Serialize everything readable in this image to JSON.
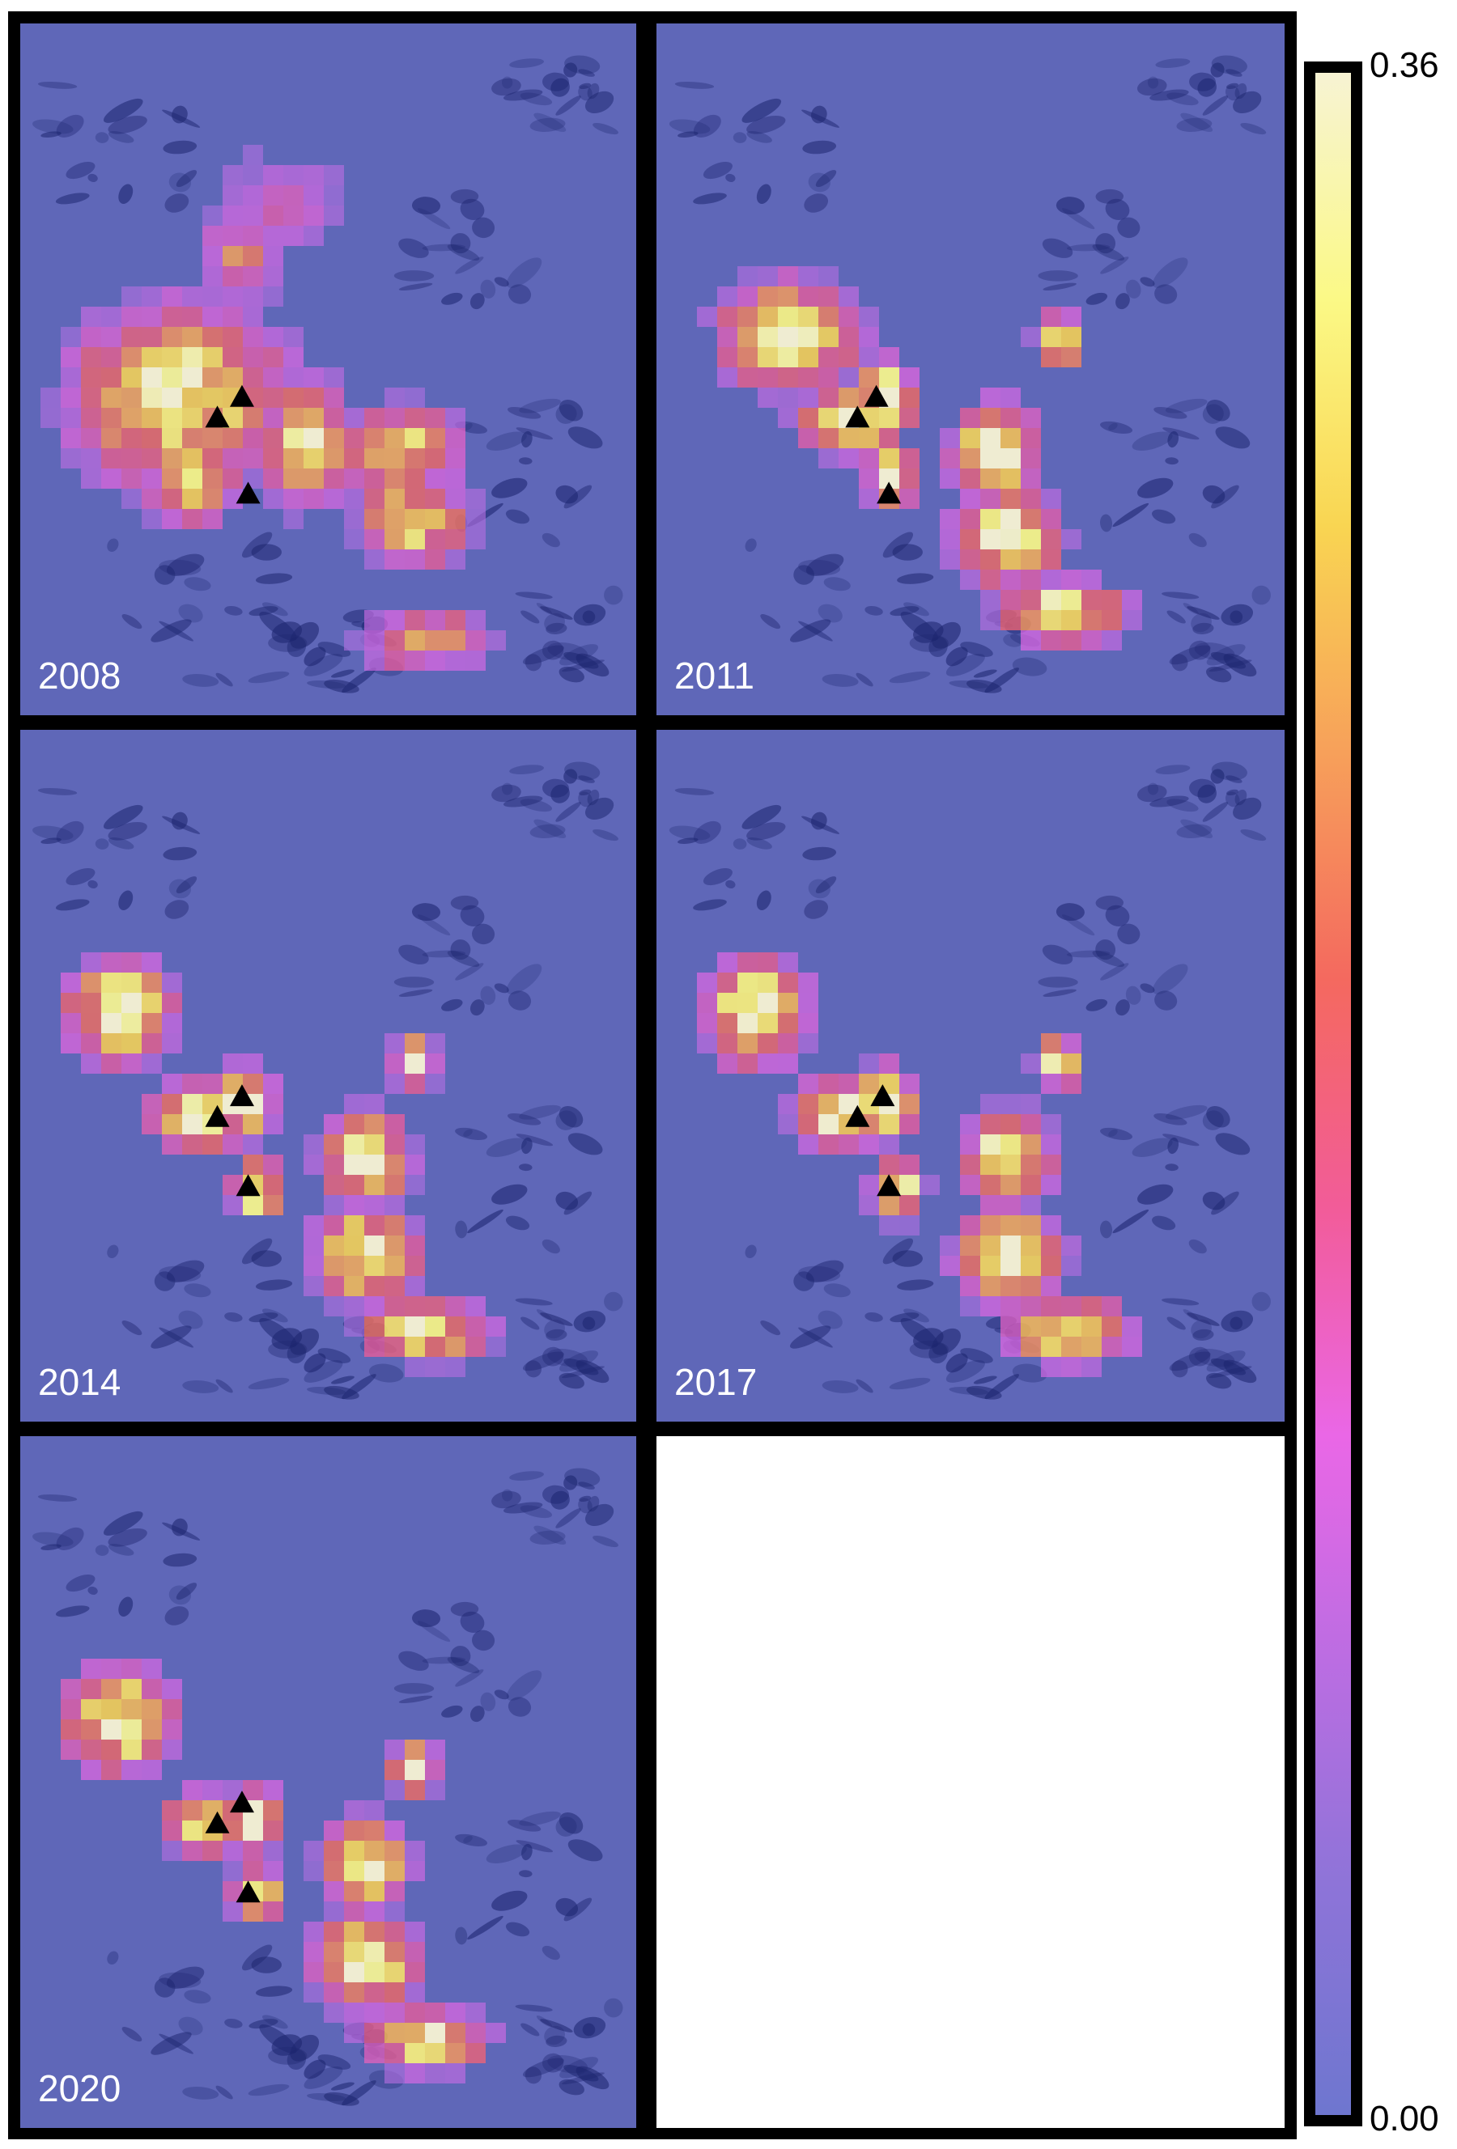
{
  "panels": [
    {
      "year": "2008",
      "hotspots": [
        [
          0.06,
          0.4,
          0.4,
          0.28,
          0.48
        ],
        [
          0.2,
          0.58,
          0.16,
          0.14,
          0.4
        ],
        [
          0.4,
          0.52,
          0.13,
          0.18,
          0.45
        ],
        [
          0.52,
          0.56,
          0.2,
          0.12,
          0.4
        ],
        [
          0.55,
          0.66,
          0.18,
          0.12,
          0.42
        ],
        [
          0.55,
          0.86,
          0.22,
          0.06,
          0.35
        ],
        [
          0.3,
          0.28,
          0.12,
          0.12,
          0.3
        ],
        [
          0.3,
          0.18,
          0.25,
          0.16,
          0.18
        ]
      ],
      "vents": [
        [
          0.36,
          0.54
        ],
        [
          0.32,
          0.57
        ],
        [
          0.37,
          0.68
        ]
      ]
    },
    {
      "year": "2011",
      "hotspots": [
        [
          0.1,
          0.38,
          0.22,
          0.14,
          0.52
        ],
        [
          0.23,
          0.54,
          0.15,
          0.07,
          0.5
        ],
        [
          0.33,
          0.5,
          0.07,
          0.08,
          0.5
        ],
        [
          0.35,
          0.63,
          0.05,
          0.05,
          0.5
        ],
        [
          0.48,
          0.56,
          0.12,
          0.12,
          0.52
        ],
        [
          0.48,
          0.68,
          0.16,
          0.12,
          0.5
        ],
        [
          0.55,
          0.82,
          0.2,
          0.06,
          0.48
        ],
        [
          0.62,
          0.44,
          0.04,
          0.04,
          0.45
        ]
      ],
      "vents": [
        [
          0.35,
          0.54
        ],
        [
          0.32,
          0.57
        ],
        [
          0.37,
          0.68
        ]
      ]
    },
    {
      "year": "2014",
      "hotspots": [
        [
          0.08,
          0.34,
          0.16,
          0.14,
          0.52
        ],
        [
          0.22,
          0.52,
          0.15,
          0.07,
          0.5
        ],
        [
          0.33,
          0.5,
          0.07,
          0.08,
          0.5
        ],
        [
          0.36,
          0.64,
          0.05,
          0.05,
          0.5
        ],
        [
          0.5,
          0.56,
          0.12,
          0.12,
          0.52
        ],
        [
          0.48,
          0.7,
          0.16,
          0.12,
          0.5
        ],
        [
          0.56,
          0.84,
          0.2,
          0.06,
          0.48
        ],
        [
          0.62,
          0.46,
          0.04,
          0.04,
          0.45
        ]
      ],
      "vents": [
        [
          0.36,
          0.53
        ],
        [
          0.32,
          0.56
        ],
        [
          0.37,
          0.66
        ]
      ]
    },
    {
      "year": "2017",
      "hotspots": [
        [
          0.08,
          0.34,
          0.16,
          0.14,
          0.52
        ],
        [
          0.22,
          0.52,
          0.15,
          0.07,
          0.5
        ],
        [
          0.33,
          0.5,
          0.07,
          0.08,
          0.5
        ],
        [
          0.36,
          0.64,
          0.05,
          0.05,
          0.5
        ],
        [
          0.5,
          0.56,
          0.12,
          0.12,
          0.52
        ],
        [
          0.48,
          0.7,
          0.16,
          0.12,
          0.5
        ],
        [
          0.56,
          0.84,
          0.2,
          0.06,
          0.48
        ],
        [
          0.62,
          0.46,
          0.04,
          0.04,
          0.45
        ]
      ],
      "vents": [
        [
          0.36,
          0.53
        ],
        [
          0.32,
          0.56
        ],
        [
          0.37,
          0.66
        ]
      ]
    },
    {
      "year": "2020",
      "hotspots": [
        [
          0.08,
          0.34,
          0.16,
          0.14,
          0.52
        ],
        [
          0.24,
          0.53,
          0.12,
          0.06,
          0.48
        ],
        [
          0.34,
          0.52,
          0.07,
          0.07,
          0.5
        ],
        [
          0.36,
          0.64,
          0.05,
          0.05,
          0.5
        ],
        [
          0.5,
          0.56,
          0.12,
          0.12,
          0.52
        ],
        [
          0.48,
          0.7,
          0.16,
          0.12,
          0.5
        ],
        [
          0.56,
          0.84,
          0.2,
          0.06,
          0.48
        ],
        [
          0.62,
          0.46,
          0.04,
          0.04,
          0.45
        ]
      ],
      "vents": [
        [
          0.36,
          0.53
        ],
        [
          0.32,
          0.56
        ],
        [
          0.37,
          0.66
        ]
      ]
    }
  ],
  "colorbar": {
    "max_label": "0.36",
    "min_label": "0.00",
    "stops": [
      "#f7f3d3",
      "#fbf986",
      "#f9d552",
      "#f7a05a",
      "#f4695f",
      "#f25c99",
      "#ea67e6",
      "#bb6de2",
      "#8d74d8",
      "#6e76cf"
    ]
  },
  "colors": {
    "terrain": "#5f67b8",
    "terrain_dark": "#1d2670",
    "triangle": "#000000",
    "label": "#ffffff"
  }
}
